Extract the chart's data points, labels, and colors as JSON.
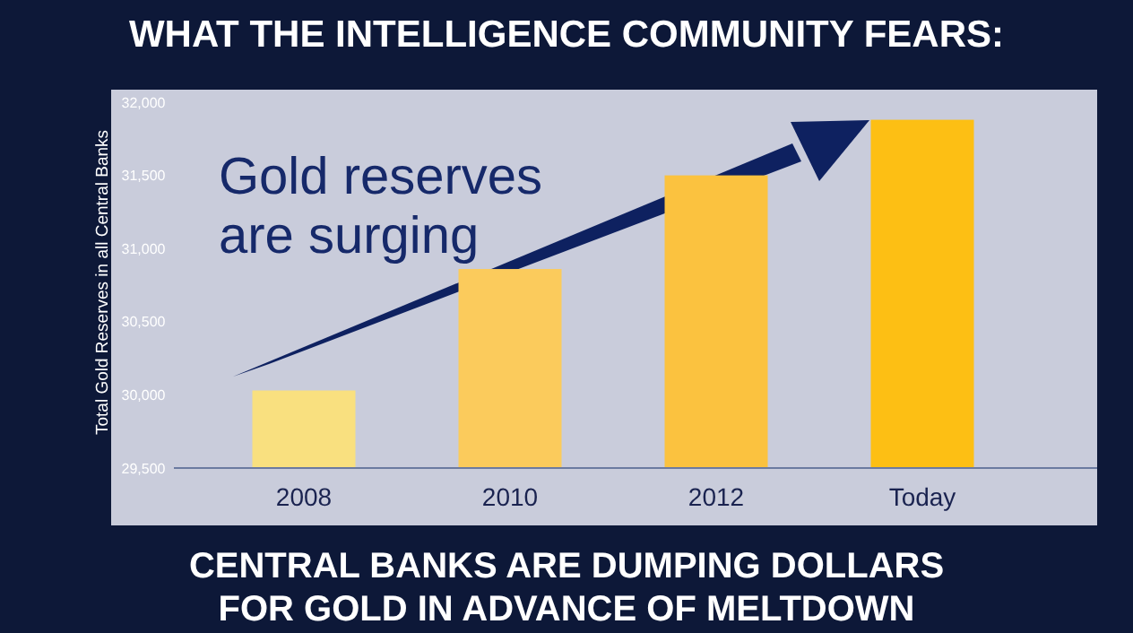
{
  "chart_data": {
    "type": "bar",
    "title": "WHAT THE INTELLIGENCE COMMUNITY FEARS:",
    "subtitle": "CENTRAL BANKS ARE DUMPING DOLLARS\nFOR GOLD IN ADVANCE OF MELTDOWN",
    "ylabel": "Total Gold Reserves in all Central Banks",
    "annotations": [
      "Gold reserves\nare surging"
    ],
    "categories": [
      "2008",
      "2010",
      "2012",
      "Today"
    ],
    "values": [
      30030,
      30860,
      31500,
      31880
    ],
    "colors": [
      "#f9e07f",
      "#fbcb5c",
      "#fbc23f",
      "#fdbf14"
    ],
    "ylim": [
      29500,
      32000
    ],
    "yticks": [
      {
        "value": 29500,
        "label": "29,500"
      },
      {
        "value": 30000,
        "label": "30,000"
      },
      {
        "value": 30500,
        "label": "30,500"
      },
      {
        "value": 31000,
        "label": "31,000"
      },
      {
        "value": 31500,
        "label": "31,500"
      },
      {
        "value": 32000,
        "label": "32,000"
      }
    ],
    "grid": false
  }
}
